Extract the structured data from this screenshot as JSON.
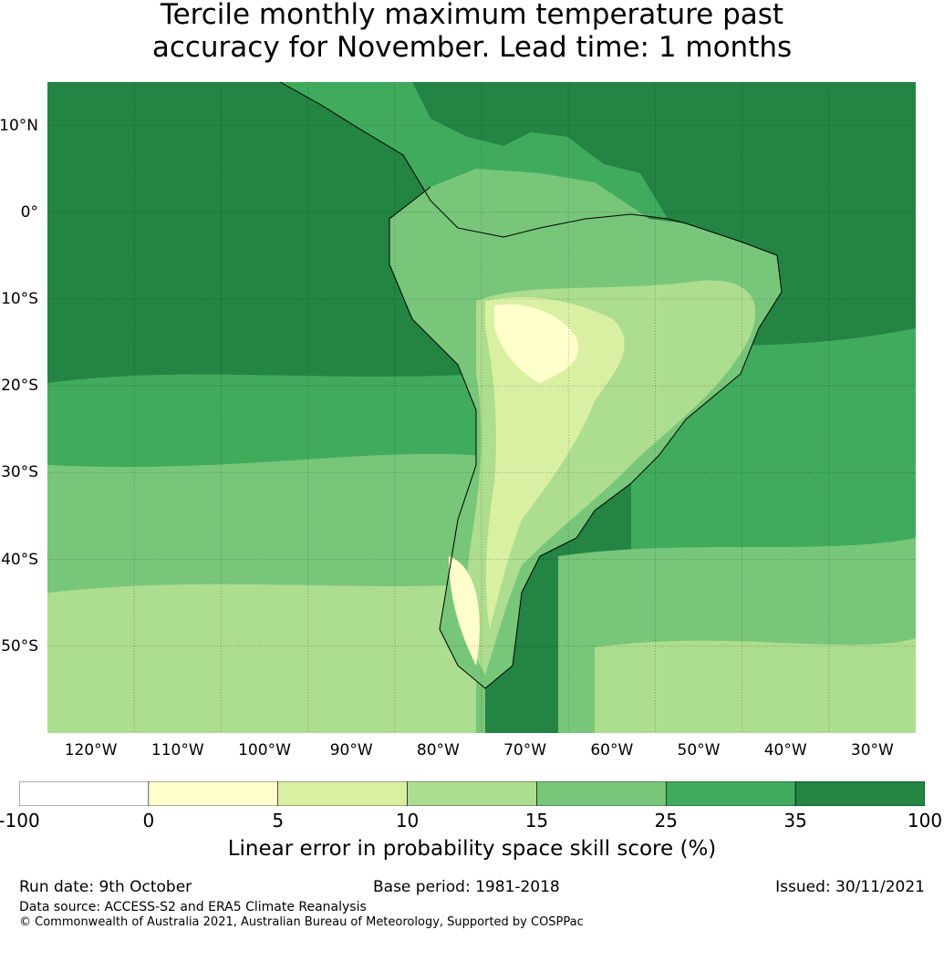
{
  "title_line1": "Tercile monthly maximum temperature past",
  "title_line2": "accuracy for November. Lead time: 1 months",
  "map": {
    "lon_range": [
      -125,
      -25
    ],
    "lat_range": [
      -60,
      15
    ],
    "lat_ticks": [
      "10°N",
      "0°",
      "10°S",
      "20°S",
      "30°S",
      "40°S",
      "50°S"
    ],
    "lat_values": [
      10,
      0,
      -10,
      -20,
      -30,
      -40,
      -50
    ],
    "lon_ticks": [
      "120°W",
      "110°W",
      "100°W",
      "90°W",
      "80°W",
      "70°W",
      "60°W",
      "50°W",
      "40°W",
      "30°W"
    ],
    "lon_values": [
      -120,
      -110,
      -100,
      -90,
      -80,
      -70,
      -60,
      -50,
      -40,
      -30
    ]
  },
  "colorbar": {
    "labels": [
      "-100",
      "0",
      "5",
      "10",
      "15",
      "25",
      "35",
      "100"
    ],
    "colors": [
      "#ffffff",
      "#ffffcc",
      "#d9f0a3",
      "#addd8e",
      "#78c679",
      "#41ab5d",
      "#238443"
    ],
    "title": "Linear error in probability space skill score (%)"
  },
  "footer": {
    "run_date": "Run date: 9th October",
    "base_period": "Base period: 1981-2018",
    "issued": "Issued: 30/11/2021",
    "data_source": "Data source: ACCESS-S2 and ERA5 Climate Reanalysis",
    "copyright": "© Commonwealth of Australia 2021, Australian Bureau of Meteorology, Supported by COSPPac"
  }
}
